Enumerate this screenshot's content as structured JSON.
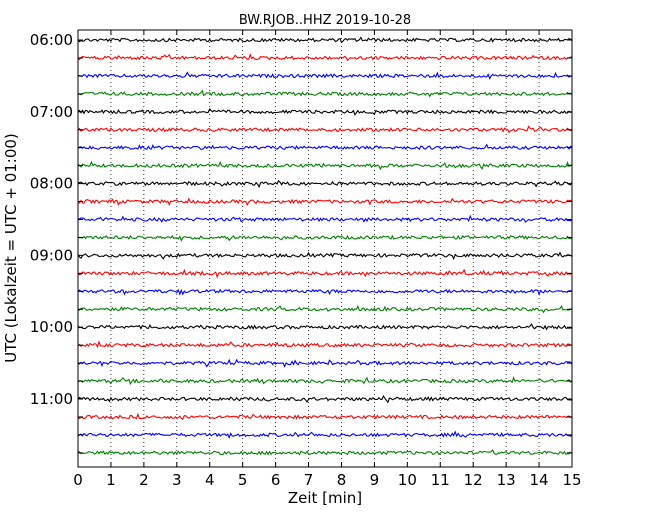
{
  "chart_data": {
    "type": "line",
    "title": "BW.RJOB..HHZ 2019-10-28",
    "xlabel": "Zeit  [min]",
    "ylabel": "UTC (Lokalzeit = UTC + 01:00)",
    "xlim": [
      0,
      15
    ],
    "x_ticks": [
      "0",
      "1",
      "2",
      "3",
      "4",
      "5",
      "6",
      "7",
      "8",
      "9",
      "10",
      "11",
      "12",
      "13",
      "14",
      "15"
    ],
    "y_tick_labels": [
      "06:00",
      "07:00",
      "08:00",
      "09:00",
      "10:00",
      "11:00"
    ],
    "grid": "vertical dotted",
    "trace_colors": [
      "#000000",
      "#ff0000",
      "#0000ff",
      "#008000"
    ],
    "traces": [
      {
        "start": "06:00"
      },
      {
        "start": "06:15"
      },
      {
        "start": "06:30"
      },
      {
        "start": "06:45"
      },
      {
        "start": "07:00"
      },
      {
        "start": "07:15"
      },
      {
        "start": "07:30"
      },
      {
        "start": "07:45"
      },
      {
        "start": "08:00"
      },
      {
        "start": "08:15"
      },
      {
        "start": "08:30"
      },
      {
        "start": "08:45"
      },
      {
        "start": "09:00"
      },
      {
        "start": "09:15"
      },
      {
        "start": "09:30"
      },
      {
        "start": "09:45"
      },
      {
        "start": "10:00"
      },
      {
        "start": "10:15"
      },
      {
        "start": "10:30"
      },
      {
        "start": "10:45"
      },
      {
        "start": "11:00"
      },
      {
        "start": "11:15"
      },
      {
        "start": "11:30"
      },
      {
        "start": "11:45"
      }
    ]
  }
}
